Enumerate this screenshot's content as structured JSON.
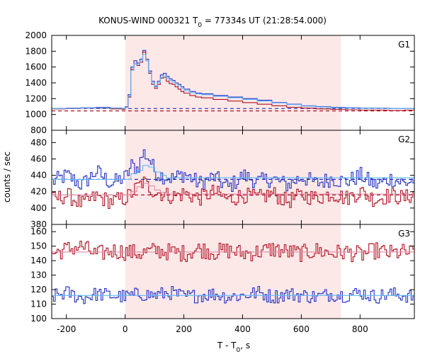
{
  "chart_data": {
    "type": "line",
    "title_parts": {
      "prefix": "KONUS-WIND 000321 T",
      "sub": "0",
      "suffix": " = 77334s UT (21:28:54.000)"
    },
    "xlabel_parts": {
      "prefix": "T - T",
      "sub": "0",
      "suffix": ", s"
    },
    "ylabel": "counts / sec",
    "xlim": [
      -250,
      985
    ],
    "xticks": [
      -200,
      0,
      200,
      400,
      600,
      800
    ],
    "highlight_interval": [
      0,
      735
    ],
    "colors": {
      "highlight": "#fde8e8",
      "dark_red": "#b01020",
      "blue": "#2030c0",
      "light_blue": "#60b8ff",
      "pink": "#e08aa6"
    },
    "panels": [
      {
        "label": "G1",
        "ylim": [
          800,
          2000
        ],
        "yticks": [
          800,
          1000,
          1200,
          1400,
          1600,
          1800,
          2000
        ],
        "background_levels": {
          "dark_red": 1045,
          "blue": 1075
        },
        "series": [
          {
            "color": "blue",
            "x": [
              -250,
              -200,
              -150,
              -100,
              -50,
              -10,
              0,
              10,
              20,
              30,
              40,
              50,
              60,
              70,
              80,
              90,
              100,
              110,
              120,
              130,
              140,
              150,
              160,
              170,
              180,
              190,
              200,
              220,
              240,
              260,
              300,
              350,
              400,
              450,
              500,
              550,
              600,
              650,
              700,
              750,
              800,
              850,
              900,
              950,
              985
            ],
            "y": [
              1075,
              1080,
              1085,
              1090,
              1080,
              1075,
              1100,
              1250,
              1600,
              1680,
              1650,
              1700,
              1810,
              1700,
              1550,
              1420,
              1360,
              1420,
              1500,
              1520,
              1480,
              1450,
              1430,
              1400,
              1380,
              1350,
              1320,
              1290,
              1270,
              1260,
              1240,
              1220,
              1200,
              1180,
              1150,
              1130,
              1110,
              1100,
              1090,
              1085,
              1080,
              1080,
              1075,
              1075,
              1080
            ]
          },
          {
            "color": "dark_red",
            "x": [
              -250,
              -200,
              -150,
              -100,
              -50,
              -10,
              0,
              10,
              20,
              30,
              40,
              50,
              60,
              70,
              80,
              90,
              100,
              110,
              120,
              130,
              140,
              150,
              160,
              170,
              180,
              190,
              200,
              220,
              240,
              260,
              300,
              350,
              400,
              450,
              500,
              550,
              600,
              650,
              700,
              750,
              800,
              850,
              900,
              950,
              985
            ],
            "y": [
              1070,
              1075,
              1080,
              1080,
              1070,
              1065,
              1090,
              1220,
              1570,
              1640,
              1620,
              1660,
              1790,
              1680,
              1520,
              1380,
              1330,
              1380,
              1460,
              1470,
              1420,
              1390,
              1380,
              1350,
              1320,
              1290,
              1270,
              1240,
              1220,
              1210,
              1190,
              1170,
              1150,
              1130,
              1110,
              1090,
              1080,
              1070,
              1065,
              1060,
              1055,
              1055,
              1050,
              1055,
              1050
            ]
          },
          {
            "color": "light_blue",
            "x": [
              -250,
              -200,
              -150,
              -100,
              -50,
              -10,
              0,
              10,
              20,
              30,
              40,
              50,
              60,
              70,
              80,
              90,
              100,
              110,
              120,
              130,
              140,
              150,
              160,
              170,
              180,
              190,
              200,
              220,
              240,
              260,
              300,
              350,
              400,
              450,
              500,
              550,
              600,
              650,
              700,
              750,
              800,
              850,
              900,
              950,
              985
            ],
            "y": [
              1075,
              1078,
              1082,
              1085,
              1078,
              1075,
              1095,
              1230,
              1560,
              1640,
              1630,
              1680,
              1760,
              1680,
              1530,
              1400,
              1350,
              1400,
              1470,
              1490,
              1460,
              1430,
              1410,
              1380,
              1360,
              1330,
              1300,
              1275,
              1260,
              1250,
              1230,
              1210,
              1190,
              1170,
              1145,
              1125,
              1105,
              1095,
              1085,
              1080,
              1078,
              1078,
              1075,
              1075,
              1078
            ]
          }
        ]
      },
      {
        "label": "G2",
        "ylim": [
          380,
          495
        ],
        "yticks": [
          380,
          400,
          420,
          440,
          460,
          480
        ],
        "background_levels": {
          "dark_red": 416,
          "blue": 435
        },
        "series": [
          {
            "color": "blue",
            "x": [
              -250,
              -200,
              -150,
              -100,
              -50,
              0,
              20,
              40,
              60,
              80,
              100,
              120,
              140,
              160,
              200,
              250,
              300,
              350,
              400,
              450,
              500,
              550,
              600,
              650,
              700,
              750,
              800,
              850,
              900,
              950,
              985
            ],
            "y": [
              432,
              440,
              428,
              445,
              430,
              438,
              452,
              448,
              468,
              460,
              444,
              440,
              438,
              436,
              442,
              430,
              438,
              425,
              440,
              432,
              436,
              428,
              438,
              430,
              436,
              432,
              440,
              428,
              436,
              430,
              435
            ],
            "noise": 10
          },
          {
            "color": "dark_red",
            "x": [
              -250,
              -200,
              -150,
              -100,
              -50,
              0,
              20,
              40,
              60,
              80,
              100,
              120,
              140,
              160,
              200,
              250,
              300,
              350,
              400,
              450,
              500,
              550,
              600,
              650,
              700,
              750,
              800,
              850,
              900,
              950,
              985
            ],
            "y": [
              410,
              416,
              405,
              414,
              408,
              412,
              418,
              426,
              432,
              425,
              420,
              418,
              416,
              414,
              418,
              412,
              420,
              410,
              416,
              412,
              418,
              408,
              416,
              412,
              418,
              412,
              420,
              410,
              416,
              412,
              418
            ],
            "noise": 10
          },
          {
            "color": "light_blue",
            "x": [
              -250,
              0,
              20,
              40,
              60,
              80,
              100,
              120,
              140,
              985
            ],
            "y": [
              435,
              435,
              442,
              446,
              452,
              450,
              444,
              440,
              437,
              435
            ]
          },
          {
            "color": "pink",
            "x": [
              -250,
              0,
              20,
              40,
              60,
              80,
              100,
              120,
              140,
              985
            ],
            "y": [
              416,
              416,
              420,
              426,
              430,
              427,
              422,
              419,
              417,
              416
            ]
          }
        ]
      },
      {
        "label": "G3",
        "ylim": [
          100,
          165
        ],
        "yticks": [
          100,
          110,
          120,
          130,
          140,
          150,
          160
        ],
        "background_levels": {},
        "series": [
          {
            "color": "dark_red",
            "x": [
              -250,
              -200,
              -150,
              -100,
              -50,
              0,
              50,
              100,
              150,
              200,
              250,
              300,
              350,
              400,
              450,
              500,
              550,
              600,
              650,
              700,
              750,
              800,
              850,
              900,
              950,
              985
            ],
            "y": [
              145,
              148,
              150,
              144,
              147,
              146,
              145,
              147,
              146,
              145,
              148,
              146,
              147,
              145,
              146,
              148,
              146,
              145,
              147,
              145,
              146,
              144,
              147,
              145,
              146,
              145
            ],
            "noise": 6
          },
          {
            "color": "blue",
            "x": [
              -250,
              -200,
              -150,
              -100,
              -50,
              0,
              50,
              100,
              150,
              200,
              250,
              300,
              350,
              400,
              450,
              500,
              550,
              600,
              650,
              700,
              750,
              800,
              850,
              900,
              950,
              985
            ],
            "y": [
              115,
              118,
              114,
              117,
              116,
              115,
              117,
              116,
              118,
              115,
              116,
              117,
              115,
              116,
              118,
              115,
              117,
              116,
              115,
              117,
              116,
              118,
              115,
              117,
              116,
              115
            ],
            "noise": 5
          },
          {
            "color": "pink",
            "x": [
              -250,
              985
            ],
            "y": [
              146,
              146
            ]
          },
          {
            "color": "light_blue",
            "x": [
              -250,
              985
            ],
            "y": [
              116,
              116
            ]
          }
        ]
      }
    ]
  }
}
